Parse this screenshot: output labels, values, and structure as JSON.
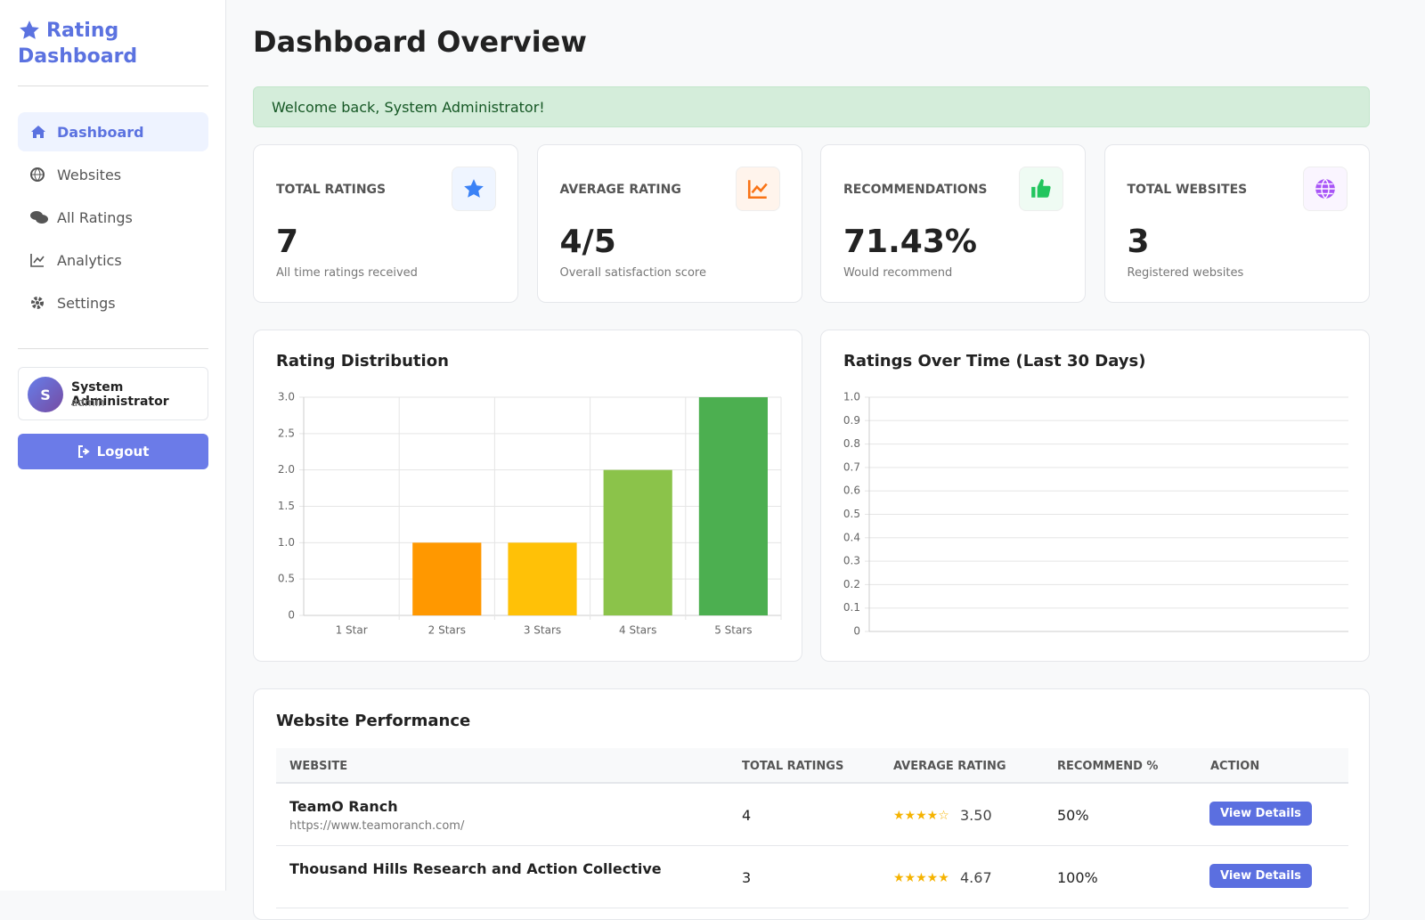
{
  "sidebar": {
    "brand": "Rating Dashboard",
    "nav": [
      "Dashboard",
      "Websites",
      "All Ratings",
      "Analytics",
      "Settings"
    ],
    "user": {
      "avatar": "S",
      "name": "System Administrator",
      "role": "admin"
    },
    "logout": "Logout"
  },
  "header": {
    "title": "Dashboard Overview"
  },
  "alert": "Welcome back, System Administrator!",
  "stats": [
    {
      "label": "TOTAL RATINGS",
      "value": "7",
      "note": "All time ratings received"
    },
    {
      "label": "AVERAGE RATING",
      "value": "4/5",
      "note": "Overall satisfaction score"
    },
    {
      "label": "RECOMMENDATIONS",
      "value": "71.43%",
      "note": "Would recommend"
    },
    {
      "label": "TOTAL WEBSITES",
      "value": "3",
      "note": "Registered websites"
    }
  ],
  "chart_data": [
    {
      "type": "bar",
      "title": "Rating Distribution",
      "categories": [
        "1 Star",
        "2 Stars",
        "3 Stars",
        "4 Stars",
        "5 Stars"
      ],
      "values": [
        0,
        1,
        1,
        2,
        3
      ],
      "colors": [
        "#f44336",
        "#ff9800",
        "#ffc107",
        "#8bc34a",
        "#4caf50"
      ],
      "ylim": [
        0,
        3
      ],
      "yticks": [
        0,
        0.5,
        {
          "value": 1,
          "label": "1.0"
        },
        1.5,
        {
          "value": 2,
          "label": "2.0"
        },
        2.5,
        {
          "value": 3,
          "label": "3.0"
        }
      ],
      "grid": true
    },
    {
      "type": "line",
      "title": "Ratings Over Time (Last 30 Days)",
      "categories": [],
      "values": [],
      "ylim": [
        0,
        1
      ],
      "yticks": [
        0,
        0.1,
        0.2,
        0.3,
        0.4,
        0.5,
        0.6,
        0.7,
        0.8,
        0.9,
        {
          "value": 1,
          "label": "1.0"
        }
      ],
      "grid": true
    }
  ],
  "table": {
    "title": "Website Performance",
    "columns": [
      "WEBSITE",
      "TOTAL RATINGS",
      "AVERAGE RATING",
      "RECOMMEND %",
      "ACTION"
    ],
    "rows": [
      {
        "name": "TeamO Ranch",
        "url": "https://www.teamoranch.com/",
        "total": "4",
        "stars": "★★★★☆",
        "avg": "3.50",
        "recommend": "50%",
        "action": "View Details"
      },
      {
        "name": "Thousand Hills Research and Action Collective",
        "url": "",
        "total": "3",
        "stars": "★★★★★",
        "avg": "4.67",
        "recommend": "100%",
        "action": "View Details"
      }
    ]
  }
}
